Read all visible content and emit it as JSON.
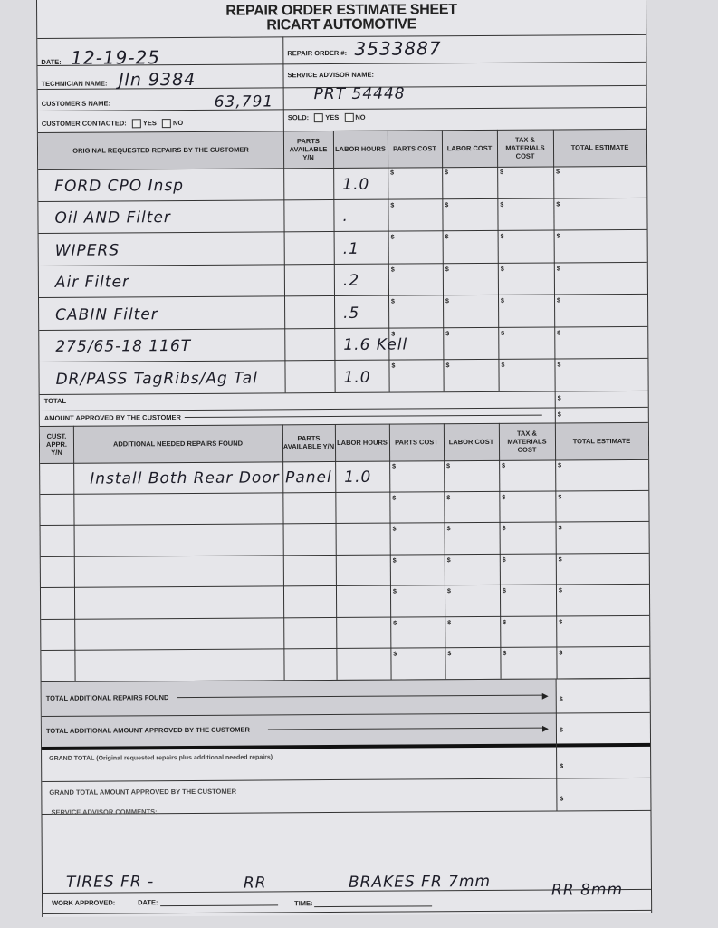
{
  "header": {
    "title": "REPAIR ORDER ESTIMATE SHEET",
    "company": "RICART AUTOMOTIVE"
  },
  "fields": {
    "date_label": "DATE:",
    "date_value": "12-19-25",
    "repair_order_label": "REPAIR ORDER #:",
    "repair_order_value": "3533887",
    "technician_label": "TECHNICIAN NAME:",
    "technician_value": "Jln 9384",
    "service_advisor_label": "SERVICE ADVISOR NAME:",
    "service_advisor_value": "PRT 54448",
    "customer_label": "CUSTOMER'S NAME:",
    "customer_value": "63,791",
    "contacted_label": "CUSTOMER CONTACTED:",
    "sold_label": "SOLD:",
    "yes": "YES",
    "no": "NO"
  },
  "original": {
    "columns": [
      "ORIGINAL REQUESTED REPAIRS BY THE CUSTOMER",
      "PARTS AVAILABLE Y/N",
      "LABOR HOURS",
      "PARTS COST",
      "LABOR COST",
      "TAX & MATERIALS COST",
      "TOTAL ESTIMATE"
    ],
    "rows": [
      {
        "repair": "FORD CPO Insp",
        "hours": "1.0"
      },
      {
        "repair": "Oil AND Filter",
        "hours": "."
      },
      {
        "repair": "WIPERS",
        "hours": ".1"
      },
      {
        "repair": "Air Filter",
        "hours": ".2"
      },
      {
        "repair": "CABIN Filter",
        "hours": ".5"
      },
      {
        "repair": "275/65-18 116T",
        "hours": "1.6 Kell"
      },
      {
        "repair": "DR/PASS TagRibs/Ag Tal",
        "hours": "1.0"
      }
    ],
    "total_label": "TOTAL",
    "approved_label": "AMOUNT APPROVED BY THE CUSTOMER"
  },
  "additional": {
    "columns": [
      "CUST. APPR. Y/N",
      "ADDITIONAL NEEDED REPAIRS FOUND",
      "PARTS AVAILABLE Y/N",
      "LABOR HOURS",
      "PARTS COST",
      "LABOR COST",
      "TAX & MATERIALS COST",
      "TOTAL ESTIMATE"
    ],
    "rows": [
      {
        "repair": "Install Both Rear Door Panel",
        "hours": "1.0"
      },
      {
        "repair": "",
        "hours": ""
      },
      {
        "repair": "",
        "hours": ""
      },
      {
        "repair": "",
        "hours": ""
      },
      {
        "repair": "",
        "hours": ""
      },
      {
        "repair": "",
        "hours": ""
      },
      {
        "repair": "",
        "hours": ""
      }
    ]
  },
  "totals": {
    "additional_found": "TOTAL ADDITIONAL REPAIRS FOUND",
    "additional_approved": "TOTAL ADDITIONAL AMOUNT APPROVED BY THE CUSTOMER",
    "grand_total": "GRAND TOTAL (Original requested repairs plus additional needed repairs)",
    "grand_approved": "GRAND TOTAL AMOUNT APPROVED BY THE CUSTOMER",
    "currency": "$"
  },
  "comments": {
    "label": "SERVICE ADVISOR COMMENTS:",
    "tires": "TIRES FR -",
    "tires_rr": "RR",
    "brakes": "BRAKES FR 7mm",
    "brakes_rr": "RR 8mm"
  },
  "footer": {
    "work_approved": "WORK APPROVED:",
    "date": "DATE:",
    "time": "TIME:"
  }
}
